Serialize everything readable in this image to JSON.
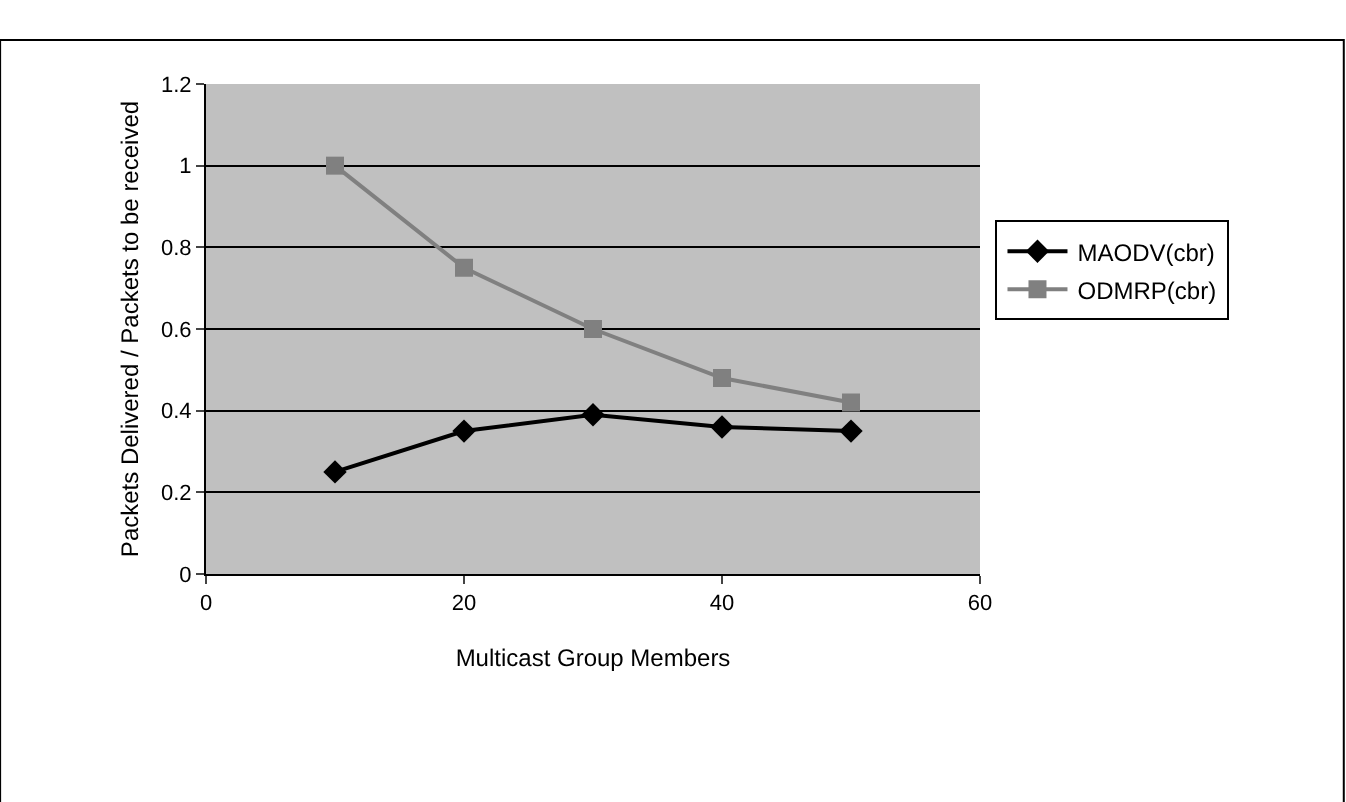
{
  "chart_data": {
    "type": "line",
    "xlabel": "Multicast Group Members",
    "ylabel": "Packets Delivered / Packets to be received",
    "x": [
      10,
      20,
      30,
      40,
      50
    ],
    "series": [
      {
        "name": "MAODV(cbr)",
        "color": "#000000",
        "marker": "diamond",
        "values": [
          0.25,
          0.35,
          0.39,
          0.36,
          0.35
        ]
      },
      {
        "name": "ODMRP(cbr)",
        "color": "#808080",
        "marker": "square",
        "values": [
          1.0,
          0.75,
          0.6,
          0.48,
          0.42
        ]
      }
    ],
    "xlim": [
      0,
      60
    ],
    "xticks": [
      0,
      20,
      40,
      60
    ],
    "ylim": [
      0,
      1.2
    ],
    "yticks": [
      0,
      0.2,
      0.4,
      0.6,
      0.8,
      1,
      1.2
    ],
    "grid": "y",
    "legend": "right",
    "line_style": "solid"
  }
}
